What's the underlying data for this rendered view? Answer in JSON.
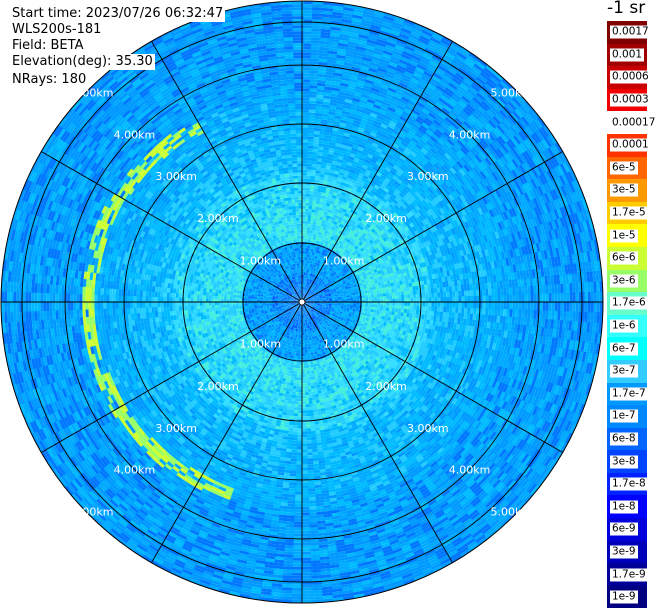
{
  "header": {
    "start_time": "Start time: 2023/07/26 06:32:47",
    "device": "WLS200s-181",
    "field": "Field: BETA",
    "elevation": "Elevation(deg): 35.30",
    "nrays": "NRays: 180"
  },
  "colorbar": {
    "title": "-1 sr",
    "labels": [
      "0.0017",
      "0.001",
      "0.0006",
      "0.0003",
      "0.00017",
      "0.0001",
      "6e-5",
      "3e-5",
      "1.7e-5",
      "1e-5",
      "6e-6",
      "3e-6",
      "1.7e-6",
      "1e-6",
      "6e-7",
      "3e-7",
      "1.7e-7",
      "1e-7",
      "6e-8",
      "3e-8",
      "1.7e-8",
      "1e-8",
      "6e-9",
      "3e-9",
      "1.7e-9",
      "1e-9"
    ],
    "colors": [
      "#800000",
      "#a00000",
      "#c80000",
      "#f00000",
      "#ffffff",
      "#ff3300",
      "#ff6600",
      "#ff9900",
      "#ffcc00",
      "#ffff00",
      "#ccff33",
      "#99ff66",
      "#66ffcc",
      "#33ffff",
      "#00ffff",
      "#33ccff",
      "#0099ff",
      "#0088ff",
      "#0066ff",
      "#0044ff",
      "#0022ff",
      "#0000ff",
      "#0000dd",
      "#0000bb",
      "#000099",
      "#000080"
    ]
  },
  "chart_data": {
    "type": "heatmap",
    "projection": "polar (PPI)",
    "range_labels_km": [
      "1.00km",
      "2.00km",
      "3.00km",
      "4.00km",
      "5.00km"
    ],
    "range_rings_km": [
      1,
      2,
      3,
      4,
      5
    ],
    "max_range_km": 5.0,
    "spoke_angles_deg": [
      0,
      30,
      60,
      90,
      120,
      150,
      180,
      210,
      240,
      270,
      300,
      330
    ],
    "grid": true,
    "features": [
      {
        "name": "aerosol arc",
        "azimuth_from_deg": 200,
        "azimuth_to_deg": 330,
        "range_km": 3.3,
        "value": "1e-5"
      }
    ]
  }
}
